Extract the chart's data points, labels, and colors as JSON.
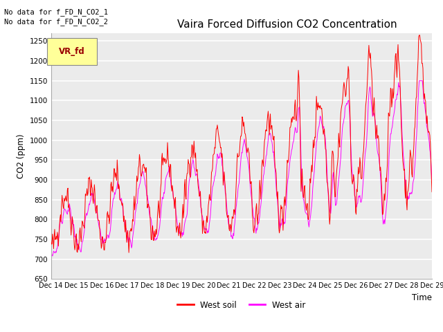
{
  "title": "Vaira Forced Diffusion CO2 Concentration",
  "xlabel": "Time",
  "ylabel": "CO2 (ppm)",
  "ylim": [
    650,
    1270
  ],
  "yticks": [
    650,
    700,
    750,
    800,
    850,
    900,
    950,
    1000,
    1050,
    1100,
    1150,
    1200,
    1250
  ],
  "xtick_labels": [
    "Dec 14",
    "Dec 15",
    "Dec 16",
    "Dec 17",
    "Dec 18",
    "Dec 19",
    "Dec 20",
    "Dec 21",
    "Dec 22",
    "Dec 23",
    "Dec 24",
    "Dec 25",
    "Dec 26",
    "Dec 27",
    "Dec 28",
    "Dec 29"
  ],
  "legend_soil": "West soil",
  "legend_air": "West air",
  "color_soil": "#FF0000",
  "color_air": "#FF00FF",
  "bg_color": "#FFFFFF",
  "plot_bg_color": "#EBEBEB",
  "annotation_text1": "No data for f_FD_N_CO2_1",
  "annotation_text2": "No data for f_FD_N_CO2_2",
  "legend_label": "VR_fd",
  "legend_color_bg": "#FFFF99",
  "legend_color_text": "#990000"
}
